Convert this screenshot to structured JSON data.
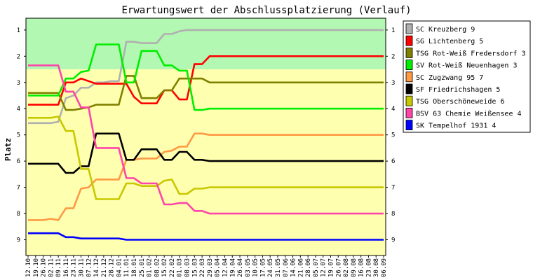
{
  "chart_data": {
    "type": "line",
    "title": "Erwartungswert der Abschlussplatzierung (Verlauf)",
    "ylabel": "Platz",
    "xlabel": "",
    "ylim": [
      9.6,
      0.55
    ],
    "y_ticks": [
      1,
      2,
      3,
      4,
      5,
      6,
      7,
      8,
      9
    ],
    "y_reversed": true,
    "bands": [
      {
        "from": 0.5,
        "to": 2.5,
        "color": "#b2f7b2"
      },
      {
        "from": 2.5,
        "to": 9.6,
        "color": "#ffffb0"
      }
    ],
    "x": [
      "12.10",
      "19.10",
      "26.10",
      "02.11",
      "09.11",
      "16.11",
      "23.11",
      "30.11",
      "07.12",
      "14.12",
      "21.12",
      "28.12",
      "04.01",
      "11.01",
      "18.01",
      "25.01",
      "01.02",
      "08.02",
      "15.02",
      "22.02",
      "01.03",
      "08.03",
      "15.03",
      "22.03",
      "29.03",
      "05.04",
      "12.04",
      "19.04",
      "26.04",
      "03.05",
      "10.05",
      "17.05",
      "24.05",
      "31.05",
      "07.06",
      "14.06",
      "21.06",
      "28.06",
      "05.07",
      "12.07",
      "19.07",
      "26.07",
      "02.08",
      "09.08",
      "16.08",
      "23.08",
      "30.08",
      "06.09"
    ],
    "legend_position": "right",
    "series": [
      {
        "name": "SC Kreuzberg 9",
        "color": "#b0b0b0",
        "values": [
          4.55,
          4.55,
          4.55,
          4.55,
          4.5,
          3.6,
          3.5,
          3.2,
          3.2,
          3.0,
          3.0,
          2.95,
          2.95,
          1.45,
          1.45,
          1.5,
          1.5,
          1.5,
          1.15,
          1.15,
          1.05,
          1,
          1,
          1,
          1,
          1,
          1,
          1,
          1,
          1,
          1,
          1,
          1,
          1,
          1,
          1,
          1,
          1,
          1,
          1,
          1,
          1,
          1,
          1,
          1,
          1,
          1,
          1
        ]
      },
      {
        "name": "SG Lichtenberg 5",
        "color": "#ff0000",
        "values": [
          3.85,
          3.85,
          3.85,
          3.85,
          3.85,
          3.0,
          3.0,
          2.85,
          2.95,
          3.05,
          3.05,
          3.05,
          3.05,
          3.05,
          3.55,
          3.8,
          3.8,
          3.8,
          3.3,
          3.3,
          3.65,
          3.65,
          2.3,
          2.3,
          2,
          2,
          2,
          2,
          2,
          2,
          2,
          2,
          2,
          2,
          2,
          2,
          2,
          2,
          2,
          2,
          2,
          2,
          2,
          2,
          2,
          2,
          2,
          2
        ]
      },
      {
        "name": "TSG Rot-Weiß Fredersdorf 3",
        "color": "#808000",
        "values": [
          3.4,
          3.4,
          3.4,
          3.4,
          3.4,
          4.05,
          4.05,
          4.0,
          3.95,
          3.85,
          3.85,
          3.85,
          3.85,
          2.75,
          2.75,
          3.6,
          3.6,
          3.6,
          3.3,
          3.3,
          2.85,
          2.85,
          2.85,
          2.85,
          3,
          3,
          3,
          3,
          3,
          3,
          3,
          3,
          3,
          3,
          3,
          3,
          3,
          3,
          3,
          3,
          3,
          3,
          3,
          3,
          3,
          3,
          3,
          3
        ]
      },
      {
        "name": "SV Rot-Weiß Neuenhagen 3",
        "color": "#00ee00",
        "values": [
          3.5,
          3.5,
          3.5,
          3.5,
          3.5,
          2.85,
          2.85,
          2.6,
          2.55,
          1.55,
          1.55,
          1.55,
          1.55,
          3.0,
          3.0,
          1.8,
          1.8,
          1.8,
          2.35,
          2.35,
          2.55,
          2.55,
          4.05,
          4.05,
          4,
          4,
          4,
          4,
          4,
          4,
          4,
          4,
          4,
          4,
          4,
          4,
          4,
          4,
          4,
          4,
          4,
          4,
          4,
          4,
          4,
          4,
          4,
          4
        ]
      },
      {
        "name": "SC Zugzwang 95 7",
        "color": "#ff9944",
        "values": [
          8.25,
          8.25,
          8.25,
          8.2,
          8.25,
          7.8,
          7.8,
          7.05,
          7.0,
          6.7,
          6.7,
          6.7,
          6.7,
          5.95,
          5.95,
          5.9,
          5.9,
          5.9,
          5.65,
          5.6,
          5.45,
          5.45,
          4.95,
          4.95,
          5,
          5,
          5,
          5,
          5,
          5,
          5,
          5,
          5,
          5,
          5,
          5,
          5,
          5,
          5,
          5,
          5,
          5,
          5,
          5,
          5,
          5,
          5,
          5
        ]
      },
      {
        "name": "SF Friedrichshagen 5",
        "color": "#000000",
        "values": [
          6.1,
          6.1,
          6.1,
          6.1,
          6.1,
          6.45,
          6.45,
          6.2,
          6.2,
          4.95,
          4.95,
          4.95,
          4.95,
          5.95,
          5.95,
          5.55,
          5.55,
          5.55,
          5.95,
          5.95,
          5.65,
          5.65,
          5.95,
          5.95,
          6,
          6,
          6,
          6,
          6,
          6,
          6,
          6,
          6,
          6,
          6,
          6,
          6,
          6,
          6,
          6,
          6,
          6,
          6,
          6,
          6,
          6,
          6,
          6
        ]
      },
      {
        "name": "TSG Oberschöneweide 6",
        "color": "#c8c800",
        "values": [
          4.35,
          4.35,
          4.35,
          4.35,
          4.3,
          4.85,
          4.85,
          6.3,
          6.3,
          7.45,
          7.45,
          7.45,
          7.45,
          6.85,
          6.85,
          6.95,
          6.95,
          6.95,
          6.75,
          6.7,
          7.25,
          7.25,
          7.05,
          7.05,
          7,
          7,
          7,
          7,
          7,
          7,
          7,
          7,
          7,
          7,
          7,
          7,
          7,
          7,
          7,
          7,
          7,
          7,
          7,
          7,
          7,
          7,
          7,
          7
        ]
      },
      {
        "name": "BSV 63 Chemie Weißensee 4",
        "color": "#ff44aa",
        "values": [
          2.35,
          2.35,
          2.35,
          2.35,
          2.35,
          3.35,
          3.35,
          3.95,
          3.95,
          5.5,
          5.5,
          5.5,
          5.5,
          6.65,
          6.65,
          6.85,
          6.85,
          6.85,
          7.65,
          7.65,
          7.6,
          7.6,
          7.9,
          7.9,
          8,
          8,
          8,
          8,
          8,
          8,
          8,
          8,
          8,
          8,
          8,
          8,
          8,
          8,
          8,
          8,
          8,
          8,
          8,
          8,
          8,
          8,
          8,
          8
        ]
      },
      {
        "name": "SK Tempelhof 1931 4",
        "color": "#0000ff",
        "values": [
          8.75,
          8.75,
          8.75,
          8.75,
          8.75,
          8.9,
          8.9,
          8.95,
          8.95,
          8.95,
          8.95,
          8.95,
          8.95,
          9,
          9,
          9,
          9,
          9,
          9,
          9,
          9,
          9,
          9,
          9,
          9,
          9,
          9,
          9,
          9,
          9,
          9,
          9,
          9,
          9,
          9,
          9,
          9,
          9,
          9,
          9,
          9,
          9,
          9,
          9,
          9,
          9,
          9,
          9
        ]
      }
    ]
  }
}
